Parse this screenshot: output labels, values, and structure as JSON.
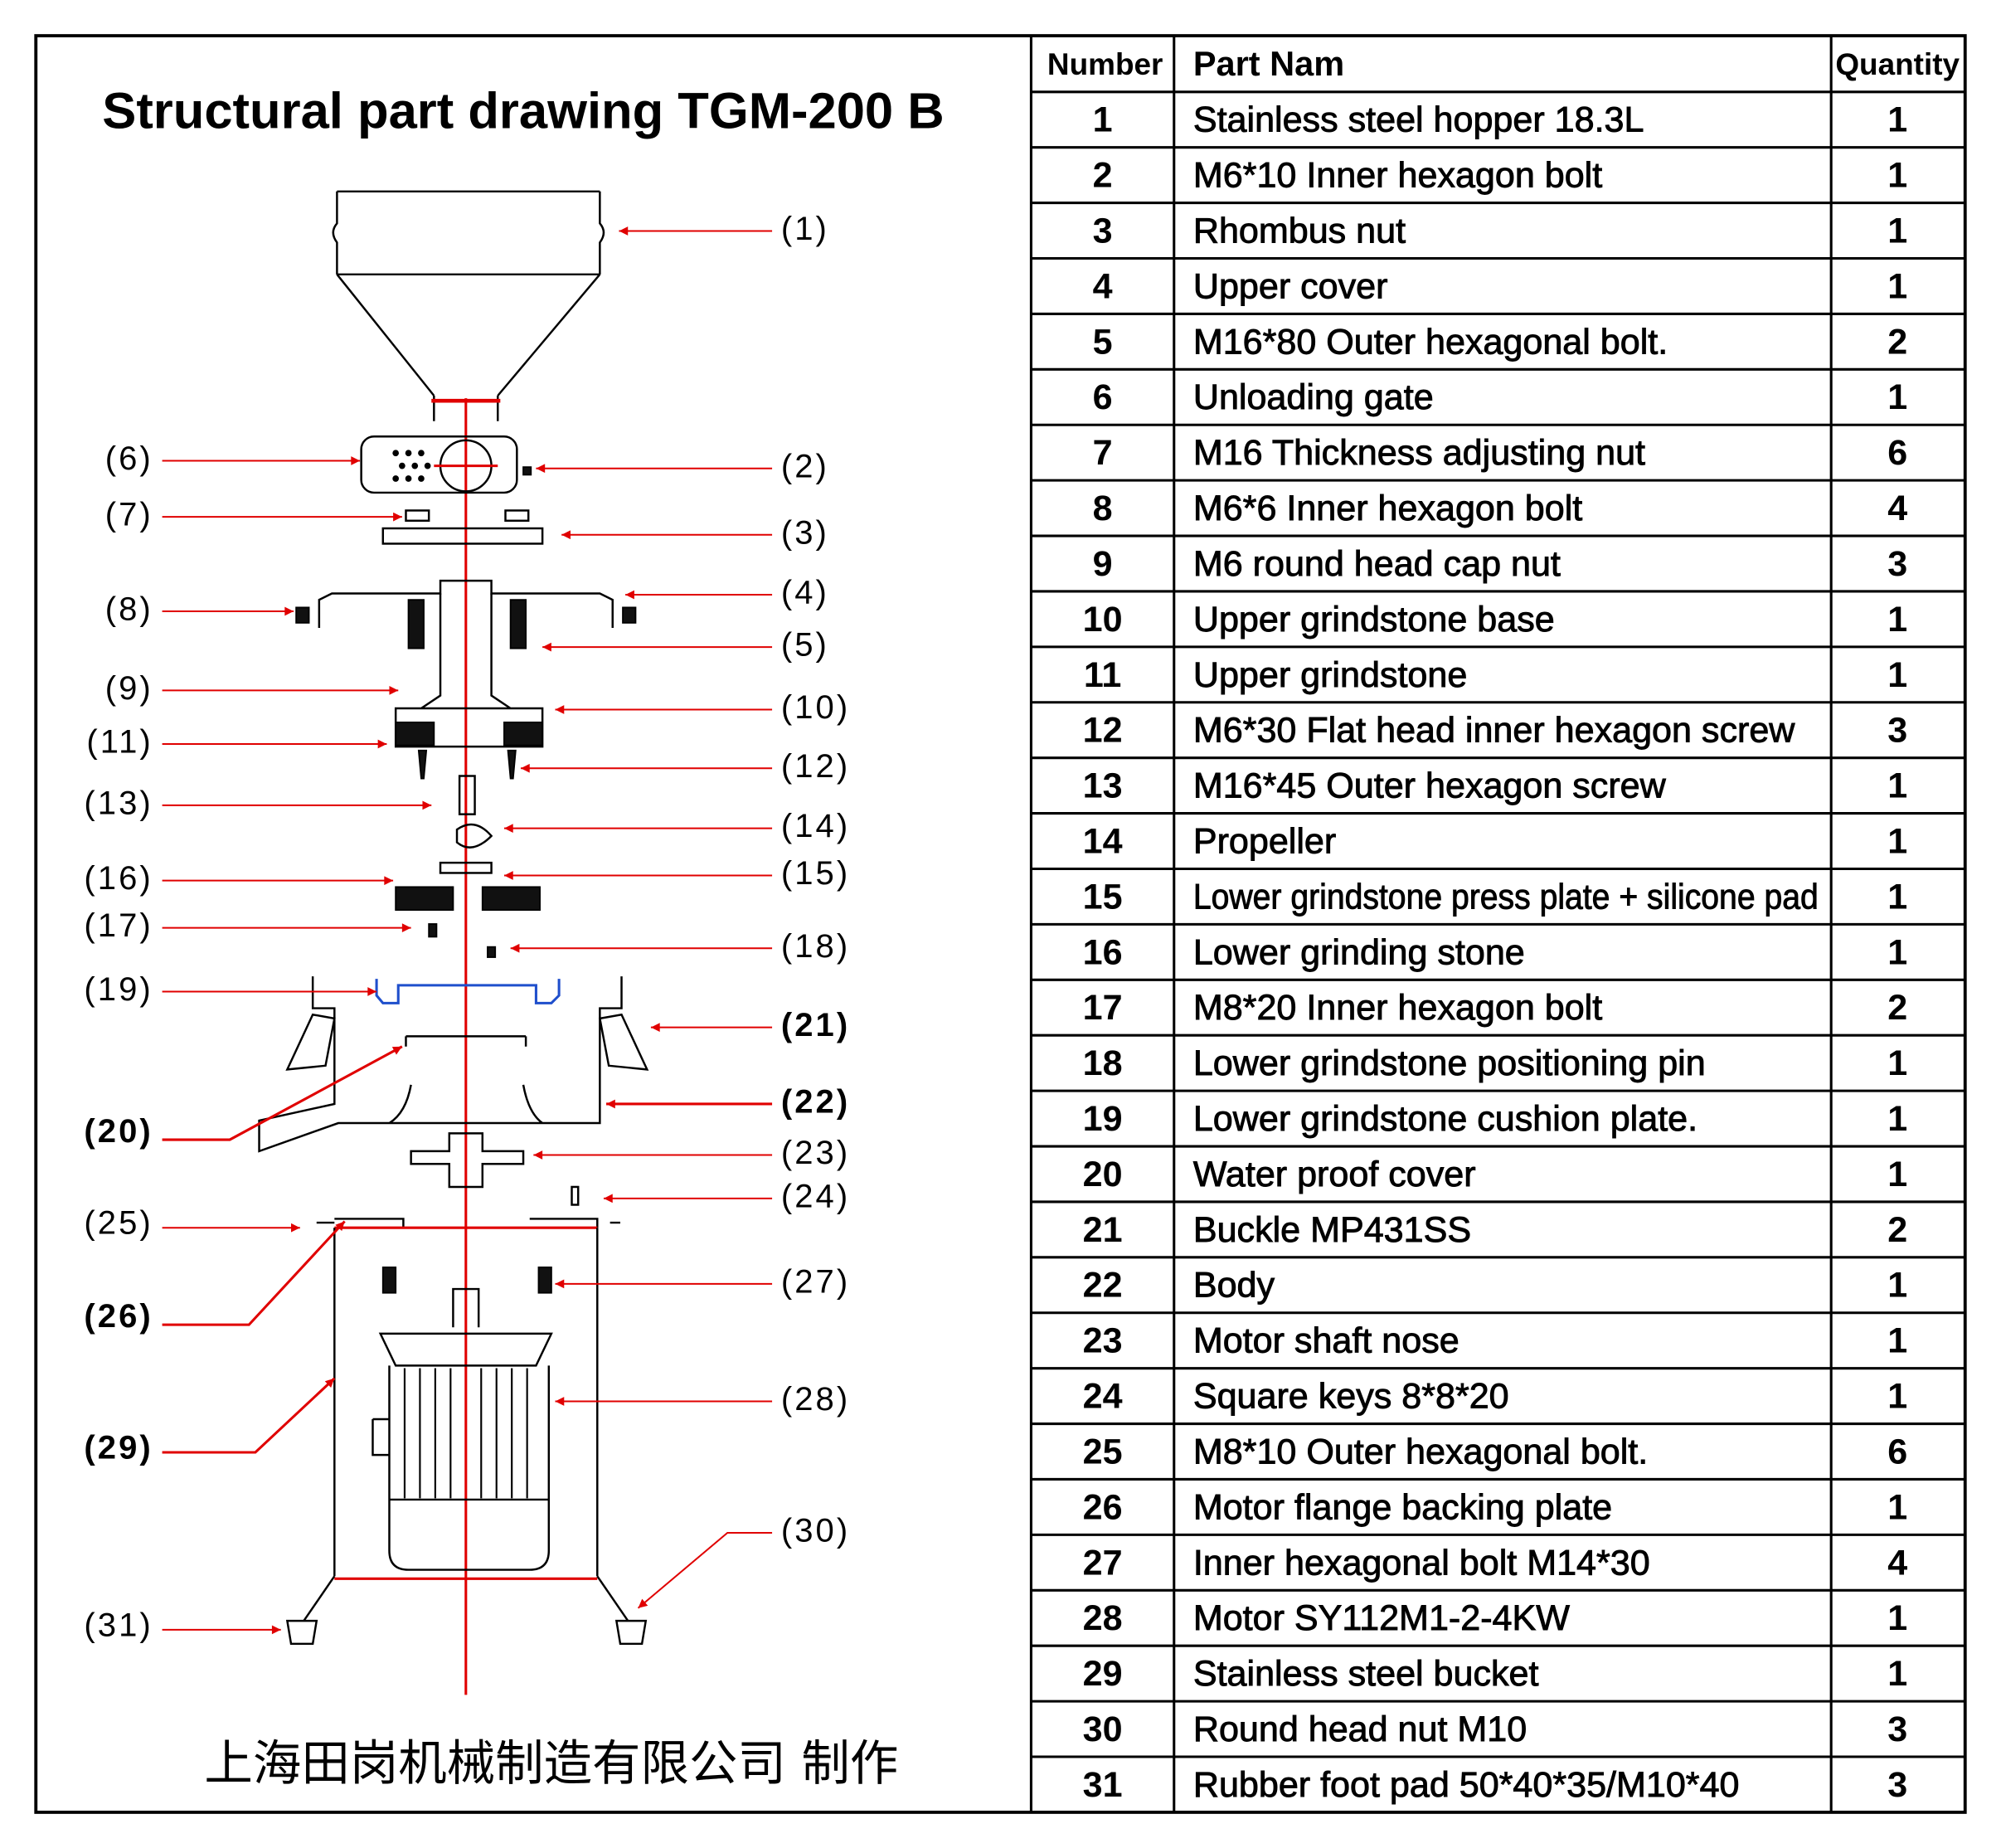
{
  "title": "Structural part drawing  TGM-200 B",
  "footer": "上海田岗机械制造有限公司 制作",
  "callouts": [
    "(1)",
    "(2)",
    "(3)",
    "(4)",
    "(5)",
    "(6)",
    "(7)",
    "(8)",
    "(9)",
    "(10)",
    "(11)",
    "(12)",
    "(13)",
    "(14)",
    "(15)",
    "(16)",
    "(17)",
    "(18)",
    "(19)",
    "(20)",
    "(21)",
    "(22)",
    "(23)",
    "(24)",
    "(25)",
    "(26)",
    "(27)",
    "(28)",
    "(29)",
    "(30)",
    "(31)"
  ],
  "table": {
    "header": [
      "Number",
      "Part Nam",
      "Quantity"
    ],
    "rows": [
      [
        1,
        "Stainless steel hopper 18.3L",
        1
      ],
      [
        2,
        "M6*10 Inner hexagon bolt",
        1
      ],
      [
        3,
        "Rhombus nut",
        1
      ],
      [
        4,
        "Upper cover",
        1
      ],
      [
        5,
        "M16*80 Outer hexagonal bolt.",
        2
      ],
      [
        6,
        "Unloading gate",
        1
      ],
      [
        7,
        "M16  Thickness adjusting nut",
        6
      ],
      [
        8,
        "M6*6 Inner hexagon bolt",
        4
      ],
      [
        9,
        "M6 round head cap nut",
        3
      ],
      [
        10,
        "Upper grindstone base",
        1
      ],
      [
        11,
        "Upper grindstone",
        1
      ],
      [
        12,
        "M6*30 Flat head inner hexagon screw",
        3
      ],
      [
        13,
        "M16*45 Outer hexagon screw",
        1
      ],
      [
        14,
        "Propeller",
        1
      ],
      [
        15,
        "Lower grindstone press plate + silicone pad",
        1
      ],
      [
        16,
        "Lower grinding stone",
        1
      ],
      [
        17,
        "M8*20 Inner hexagon bolt",
        2
      ],
      [
        18,
        "Lower grindstone positioning pin",
        1
      ],
      [
        19,
        "Lower grindstone cushion plate.",
        1
      ],
      [
        20,
        "Water proof cover",
        1
      ],
      [
        21,
        "Buckle MP431SS",
        2
      ],
      [
        22,
        "Body",
        1
      ],
      [
        23,
        "Motor shaft nose",
        1
      ],
      [
        24,
        "Square keys 8*8*20",
        1
      ],
      [
        25,
        "M8*10 Outer hexagonal bolt.",
        6
      ],
      [
        26,
        "Motor flange backing plate",
        1
      ],
      [
        27,
        "Inner hexagonal bolt M14*30",
        4
      ],
      [
        28,
        "Motor SY112M1-2-4KW",
        1
      ],
      [
        29,
        "Stainless steel bucket",
        1
      ],
      [
        30,
        "Round head nut M10",
        3
      ],
      [
        31,
        "Rubber foot pad 50*40*35/M10*40",
        3
      ]
    ]
  }
}
